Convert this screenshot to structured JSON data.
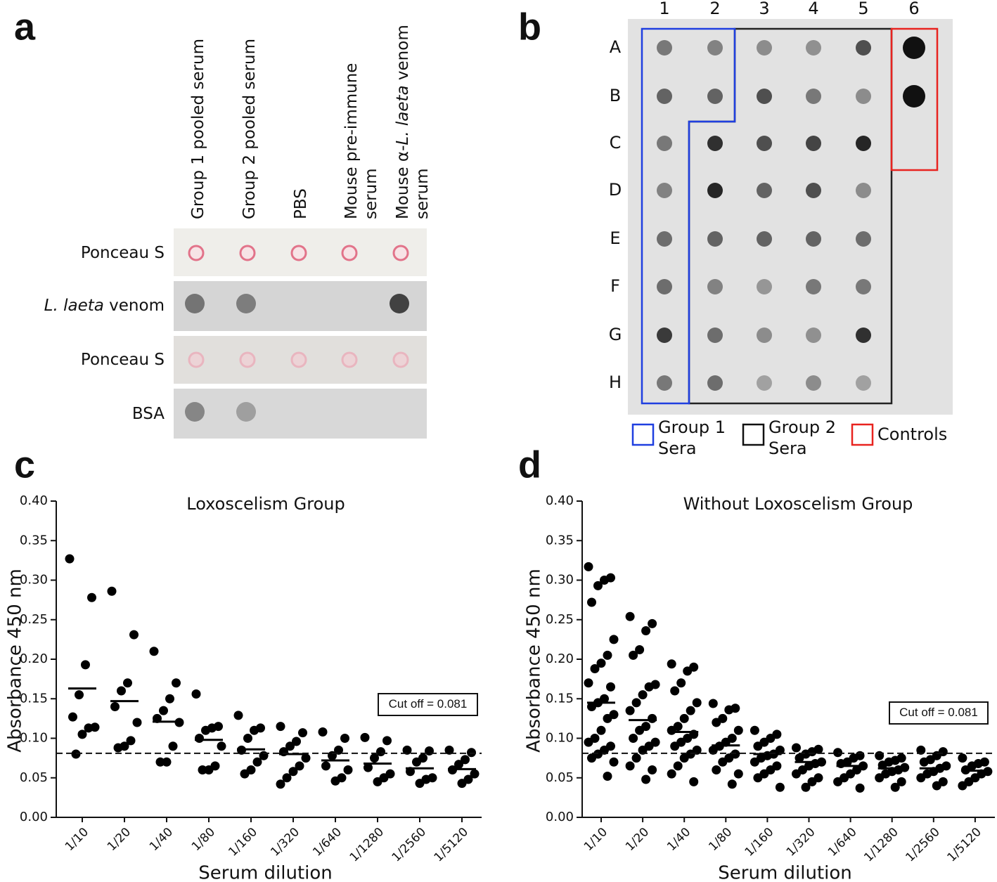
{
  "panel_labels": [
    "a",
    "b",
    "c",
    "d"
  ],
  "panel_a": {
    "columns": [
      [
        [
          {
            "text": "Group 1 pooled serum"
          }
        ]
      ],
      [
        [
          {
            "text": "Group 2 pooled serum"
          }
        ]
      ],
      [
        [
          {
            "text": "PBS"
          }
        ]
      ],
      [
        [
          {
            "text": "Mouse pre-immune"
          }
        ],
        [
          {
            "text": "serum"
          }
        ]
      ],
      [
        [
          {
            "text": "Mouse α-"
          },
          {
            "text": "L. laeta",
            "italic": true
          },
          {
            "text": " venom"
          }
        ],
        [
          {
            "text": "serum"
          }
        ]
      ]
    ],
    "rows": [
      [
        {
          "text": "Ponceau S"
        }
      ],
      [
        {
          "text": "L. laeta",
          "italic": true
        },
        {
          "text": " venom"
        }
      ],
      [
        {
          "text": "Ponceau S"
        }
      ],
      [
        {
          "text": "BSA"
        }
      ]
    ]
  },
  "panel_b": {
    "columns": [
      "1",
      "2",
      "3",
      "4",
      "5",
      "6"
    ],
    "rows": [
      "A",
      "B",
      "C",
      "D",
      "E",
      "F",
      "G",
      "H"
    ],
    "legend": [
      {
        "lines": [
          "Group 1",
          "Sera"
        ],
        "color": "#1f3fe0"
      },
      {
        "lines": [
          "Group 2",
          "Sera"
        ],
        "color": "#111111"
      },
      {
        "lines": [
          "Controls"
        ],
        "color": "#e8231f"
      }
    ]
  },
  "chart_data": [
    {
      "type": "strip",
      "title": "Loxoscelism Group",
      "xlabel": "Serum dilution",
      "ylabel": "Absorbance 450 nm",
      "categories": [
        "1/10",
        "1/20",
        "1/40",
        "1/80",
        "1/160",
        "1/320",
        "1/640",
        "1/1280",
        "1/2560",
        "1/5120"
      ],
      "values": [
        [
          0.327,
          0.278,
          0.193,
          0.155,
          0.127,
          0.114,
          0.113,
          0.105,
          0.08
        ],
        [
          0.286,
          0.231,
          0.17,
          0.16,
          0.14,
          0.12,
          0.097,
          0.09,
          0.088
        ],
        [
          0.21,
          0.17,
          0.15,
          0.135,
          0.125,
          0.12,
          0.09,
          0.07,
          0.07
        ],
        [
          0.156,
          0.115,
          0.113,
          0.11,
          0.1,
          0.09,
          0.065,
          0.06,
          0.06
        ],
        [
          0.129,
          0.113,
          0.11,
          0.1,
          0.085,
          0.078,
          0.07,
          0.06,
          0.055
        ],
        [
          0.115,
          0.107,
          0.096,
          0.09,
          0.083,
          0.075,
          0.065,
          0.058,
          0.05,
          0.042
        ],
        [
          0.108,
          0.1,
          0.085,
          0.078,
          0.065,
          0.06,
          0.05,
          0.046
        ],
        [
          0.101,
          0.097,
          0.083,
          0.075,
          0.063,
          0.055,
          0.05,
          0.045
        ],
        [
          0.085,
          0.084,
          0.075,
          0.07,
          0.058,
          0.05,
          0.048,
          0.043
        ],
        [
          0.085,
          0.082,
          0.073,
          0.067,
          0.06,
          0.055,
          0.048,
          0.043
        ]
      ],
      "means": [
        0.163,
        0.147,
        0.121,
        0.098,
        0.086,
        0.08,
        0.072,
        0.068,
        0.062,
        0.061
      ],
      "color": "#000000",
      "cutoff": 0.081,
      "cutoff_label": "Cut off = 0.081",
      "ylim": [
        0,
        0.4
      ],
      "yticks": [
        {
          "value": 0,
          "label": "0.00"
        },
        {
          "value": 0.05,
          "label": "0.05"
        },
        {
          "value": 0.1,
          "label": "0.10"
        },
        {
          "value": 0.15,
          "label": "0.15"
        },
        {
          "value": 0.2,
          "label": "0.20"
        },
        {
          "value": 0.25,
          "label": "0.25"
        },
        {
          "value": 0.3,
          "label": "0.30"
        },
        {
          "value": 0.35,
          "label": "0.35"
        },
        {
          "value": 0.4,
          "label": "0.40"
        }
      ]
    },
    {
      "type": "strip",
      "title": "Without Loxoscelism Group",
      "xlabel": "Serum dilution",
      "ylabel": "Absorbance 450 nm",
      "categories": [
        "1/10",
        "1/20",
        "1/40",
        "1/80",
        "1/160",
        "1/320",
        "1/640",
        "1/1280",
        "1/2560",
        "1/5120"
      ],
      "values": [
        [
          0.317,
          0.303,
          0.3,
          0.293,
          0.272,
          0.225,
          0.205,
          0.195,
          0.188,
          0.17,
          0.165,
          0.15,
          0.145,
          0.14,
          0.13,
          0.125,
          0.11,
          0.1,
          0.095,
          0.09,
          0.085,
          0.08,
          0.075,
          0.07,
          0.052
        ],
        [
          0.254,
          0.245,
          0.236,
          0.212,
          0.205,
          0.168,
          0.165,
          0.155,
          0.145,
          0.135,
          0.125,
          0.115,
          0.11,
          0.1,
          0.095,
          0.09,
          0.085,
          0.075,
          0.065,
          0.06,
          0.048
        ],
        [
          0.194,
          0.19,
          0.185,
          0.17,
          0.16,
          0.145,
          0.135,
          0.125,
          0.115,
          0.11,
          0.105,
          0.1,
          0.095,
          0.09,
          0.085,
          0.08,
          0.075,
          0.065,
          0.055,
          0.045
        ],
        [
          0.144,
          0.138,
          0.136,
          0.125,
          0.12,
          0.11,
          0.1,
          0.095,
          0.09,
          0.085,
          0.08,
          0.075,
          0.07,
          0.06,
          0.055,
          0.042
        ],
        [
          0.11,
          0.105,
          0.1,
          0.095,
          0.09,
          0.085,
          0.08,
          0.078,
          0.075,
          0.07,
          0.065,
          0.06,
          0.055,
          0.05,
          0.038
        ],
        [
          0.088,
          0.086,
          0.083,
          0.08,
          0.075,
          0.07,
          0.068,
          0.065,
          0.06,
          0.055,
          0.05,
          0.045,
          0.038
        ],
        [
          0.082,
          0.078,
          0.075,
          0.07,
          0.068,
          0.065,
          0.06,
          0.055,
          0.05,
          0.045,
          0.037
        ],
        [
          0.078,
          0.075,
          0.072,
          0.07,
          0.066,
          0.063,
          0.06,
          0.058,
          0.055,
          0.05,
          0.045,
          0.038
        ],
        [
          0.085,
          0.083,
          0.078,
          0.073,
          0.07,
          0.065,
          0.062,
          0.058,
          0.055,
          0.05,
          0.045,
          0.04
        ],
        [
          0.075,
          0.07,
          0.068,
          0.065,
          0.06,
          0.058,
          0.055,
          0.05,
          0.045,
          0.04
        ]
      ],
      "means": [
        0.145,
        0.123,
        0.108,
        0.091,
        0.08,
        0.07,
        0.065,
        0.062,
        0.062,
        0.059
      ],
      "color": "#000000",
      "cutoff": 0.081,
      "cutoff_label": "Cut off = 0.081",
      "ylim": [
        0,
        0.4
      ],
      "yticks": [
        {
          "value": 0,
          "label": "0.00"
        },
        {
          "value": 0.05,
          "label": "0.05"
        },
        {
          "value": 0.1,
          "label": "0.10"
        },
        {
          "value": 0.15,
          "label": "0.15"
        },
        {
          "value": 0.2,
          "label": "0.20"
        },
        {
          "value": 0.25,
          "label": "0.25"
        },
        {
          "value": 0.3,
          "label": "0.30"
        },
        {
          "value": 0.35,
          "label": "0.35"
        },
        {
          "value": 0.4,
          "label": "0.40"
        }
      ]
    }
  ]
}
